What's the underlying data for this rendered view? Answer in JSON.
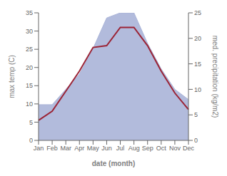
{
  "chart_data": {
    "type": "line",
    "categories": [
      "Jan",
      "Feb",
      "Mar",
      "Apr",
      "May",
      "Jun",
      "Jul",
      "Aug",
      "Sep",
      "Oct",
      "Nov",
      "Dec"
    ],
    "xlabel": "date (month)",
    "ylabel": "max temp (C)",
    "y2label": "med. precipitation (kg/m2)",
    "ylim": [
      0,
      35
    ],
    "yticks": [
      0,
      5,
      10,
      15,
      20,
      25,
      30,
      35
    ],
    "y2lim": [
      0,
      25
    ],
    "y2ticks": [
      0,
      5,
      10,
      15,
      20,
      25
    ],
    "grid": false,
    "series": [
      {
        "type": "area",
        "axis": "y2",
        "color": "#aab4d8",
        "values": [
          7,
          7,
          10,
          13,
          18,
          24,
          25,
          25,
          19,
          14,
          10,
          8
        ]
      },
      {
        "type": "line",
        "color": "#9B2335",
        "values": [
          5.5,
          8.0,
          13.5,
          19.0,
          25.5,
          26.0,
          31.0,
          31.0,
          26.0,
          19.0,
          13.0,
          8.5
        ]
      }
    ]
  }
}
